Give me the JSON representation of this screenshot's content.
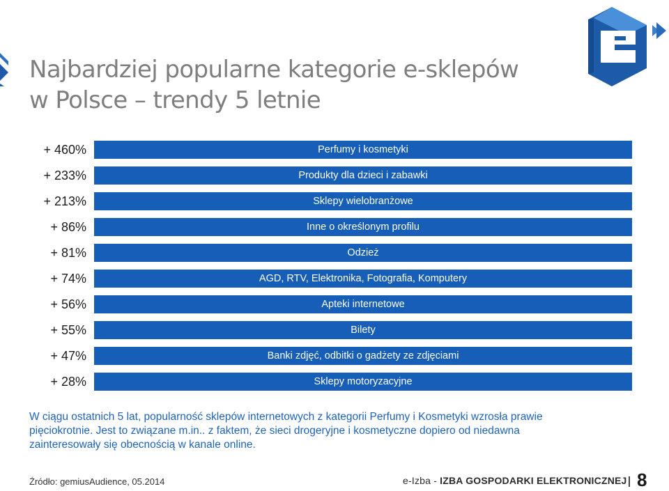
{
  "slide": {
    "title_line1": "Najbardziej popularne kategorie e-sklepów",
    "title_line2": "w Polsce – trendy 5 letnie"
  },
  "categories": [
    {
      "growth": "+ 460%",
      "label": "Perfumy i kosmetyki"
    },
    {
      "growth": "+ 233%",
      "label": "Produkty dla dzieci i zabawki"
    },
    {
      "growth": "+ 213%",
      "label": "Sklepy wielobranżowe"
    },
    {
      "growth": "+ 86%",
      "label": "Inne o określonym profilu"
    },
    {
      "growth": "+ 81%",
      "label": "Odzież"
    },
    {
      "growth": "+ 74%",
      "label": "AGD, RTV, Elektronika, Fotografia, Komputery"
    },
    {
      "growth": "+ 56%",
      "label": "Apteki internetowe"
    },
    {
      "growth": "+ 55%",
      "label": "Bilety"
    },
    {
      "growth": "+ 47%",
      "label": "Banki zdjęć, odbitki o gadżety ze zdjęciami"
    },
    {
      "growth": "+ 28%",
      "label": "Sklepy motoryzacyjne"
    }
  ],
  "summary": {
    "line1": "W ciągu ostatnich 5 lat, popularność sklepów internetowych z kategorii Perfumy i Kosmetyki wzrosła prawie",
    "line2": "pięciokrotnie. Jest to związane m.in.. z faktem, że sieci drogeryjne i kosmetyczne dopiero od niedawna",
    "line3": "zainteresowały się obecnością w kanale online."
  },
  "footer": {
    "source": "Źródło: gemiusAudience, 05.2014",
    "brand_prefix": "e-Izba - ",
    "brand_name": "IZBA GOSPODARKI ELEKTRONICZNEJ",
    "page_number": "8"
  },
  "colors": {
    "bar": "#165eb7",
    "summary_text": "#1f63b8",
    "title": "#7e7e7e"
  },
  "icons": {
    "logo": "e-izba-logo",
    "left_marker": "chevron-arrow-icon"
  }
}
